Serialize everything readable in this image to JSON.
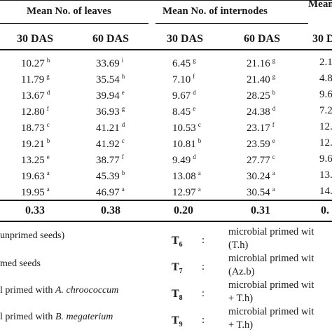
{
  "headers": {
    "leaves": "Mean No. of leaves",
    "internodes": "Mean No. of internodes",
    "third_cut": "Mean"
  },
  "subheaders": [
    "30 DAS",
    "60 DAS",
    "30 DAS",
    "60 DAS",
    "30 D"
  ],
  "rows": [
    {
      "c1": "10.27",
      "s1": "h",
      "c2": "33.69",
      "s2": "i",
      "c3": "6.45",
      "s3": "g",
      "c4": "21.16",
      "s4": "g",
      "c5": "2.1"
    },
    {
      "c1": "11.79",
      "s1": "g",
      "c2": "35.54",
      "s2": "h",
      "c3": "7.10",
      "s3": "f",
      "c4": "21.40",
      "s4": "g",
      "c5": "4.8"
    },
    {
      "c1": "13.67",
      "s1": "d",
      "c2": "39.94",
      "s2": "e",
      "c3": "9.67",
      "s3": "d",
      "c4": "28.25",
      "s4": "b",
      "c5": "9.6"
    },
    {
      "c1": "12.80",
      "s1": "f",
      "c2": "36.93",
      "s2": "g",
      "c3": "8.45",
      "s3": "e",
      "c4": "24.38",
      "s4": "d",
      "c5": "7.2"
    },
    {
      "c1": "18.73",
      "s1": "c",
      "c2": "41.21",
      "s2": "d",
      "c3": "10.53",
      "s3": "c",
      "c4": "23.17",
      "s4": "f",
      "c5": "12."
    },
    {
      "c1": "19.21",
      "s1": "b",
      "c2": "41.92",
      "s2": "c",
      "c3": "10.81",
      "s3": "b",
      "c4": "23.59",
      "s4": "e",
      "c5": "12."
    },
    {
      "c1": "13.25",
      "s1": "e",
      "c2": "38.77",
      "s2": "f",
      "c3": "9.49",
      "s3": "d",
      "c4": "27.77",
      "s4": "c",
      "c5": "9.6"
    },
    {
      "c1": "19.63",
      "s1": "a",
      "c2": "45.39",
      "s2": "b",
      "c3": "13.08",
      "s3": "a",
      "c4": "30.24",
      "s4": "a",
      "c5": "13."
    },
    {
      "c1": "19.95",
      "s1": "a",
      "c2": "46.97",
      "s2": "a",
      "c3": "12.97",
      "s3": "a",
      "c4": "30.54",
      "s4": "a",
      "c5": "14."
    }
  ],
  "cd": [
    "0.33",
    "0.38",
    "0.20",
    "0.31",
    "0."
  ],
  "legend_left": {
    "l1": "unprimed seeds)",
    "l2": "med seeds",
    "l3_pre": "l primed with ",
    "l3_it": "A. chroococcum",
    "l4_pre": "l primed with ",
    "l4_it": "B. megaterium"
  },
  "legend_right": [
    {
      "t": "T",
      "n": "6",
      "colon": ":",
      "line1": "microbial primed wit",
      "line2": "(T.h)"
    },
    {
      "t": "T",
      "n": "7",
      "colon": ":",
      "line1": "microbial primed wit",
      "line2": "(Az.b)"
    },
    {
      "t": "T",
      "n": "8",
      "colon": ":",
      "line1": "microbial primed wit",
      "line2": "+ T.h)"
    },
    {
      "t": "T",
      "n": "9",
      "colon": ":",
      "line1": "microbial primed wit",
      "line2": "+ T.h)"
    }
  ]
}
